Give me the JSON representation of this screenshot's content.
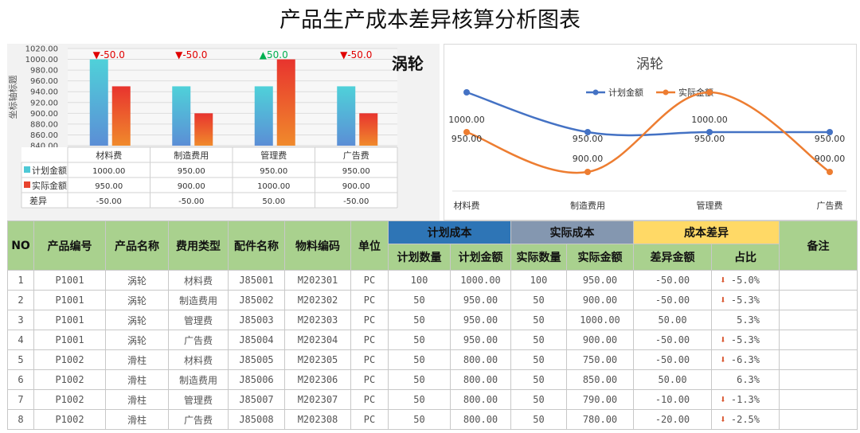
{
  "title": "产品生产成本差异核算分析图表",
  "chart_data": [
    {
      "type": "bar",
      "title": "涡轮",
      "ylabel": "坐标轴标题",
      "ylim": [
        840,
        1020
      ],
      "yticks": [
        "1020.00",
        "1000.00",
        "980.00",
        "960.00",
        "940.00",
        "920.00",
        "900.00",
        "880.00",
        "860.00",
        "840.00"
      ],
      "categories": [
        "材料费",
        "制造费用",
        "管理费",
        "广告费"
      ],
      "series": [
        {
          "name": "计划金额",
          "values": [
            1000,
            950,
            950,
            950
          ],
          "color": "#4ec9d6"
        },
        {
          "name": "实际金额",
          "values": [
            950,
            900,
            1000,
            900
          ],
          "color": "#e8432e"
        }
      ],
      "diff_row_label": "差异",
      "diff": [
        -50,
        -50,
        50,
        -50
      ],
      "annotations": [
        "▼-50.0",
        "▼-50.0",
        "▲50.0",
        "▼-50.0"
      ],
      "table_rows": [
        {
          "label": "计划金额",
          "cells": [
            "1000.00",
            "950.00",
            "950.00",
            "950.00"
          ]
        },
        {
          "label": "实际金额",
          "cells": [
            "950.00",
            "900.00",
            "1000.00",
            "900.00"
          ]
        },
        {
          "label": "差异",
          "cells": [
            "-50.00",
            "-50.00",
            "50.00",
            "-50.00"
          ]
        }
      ]
    },
    {
      "type": "line",
      "title": "涡轮",
      "legend_position": "top",
      "categories": [
        "材料费",
        "制造费用",
        "管理费",
        "广告费"
      ],
      "series": [
        {
          "name": "计划金额",
          "values": [
            1000,
            950,
            950,
            950
          ],
          "labels": [
            "1000.00",
            "950.00",
            "950.00",
            "950.00"
          ],
          "color": "#4472c4"
        },
        {
          "name": "实际金额",
          "values": [
            950,
            900,
            1000,
            900
          ],
          "labels": [
            "950.00",
            "900.00",
            "1000.00",
            "900.00"
          ],
          "color": "#ed7d31"
        }
      ]
    }
  ],
  "table": {
    "headers": {
      "no": "NO",
      "product_code": "产品编号",
      "product_name": "产品名称",
      "cost_type": "费用类型",
      "part_name": "配件名称",
      "material_code": "物料编码",
      "unit": "单位",
      "plan_group": "计划成本",
      "actual_group": "实际成本",
      "diff_group": "成本差异",
      "remark": "备注",
      "plan_qty": "计划数量",
      "plan_amt": "计划金额",
      "act_qty": "实际数量",
      "act_amt": "实际金额",
      "diff_amt": "差异金额",
      "ratio": "占比"
    },
    "rows": [
      {
        "no": "1",
        "code": "P1001",
        "name": "涡轮",
        "type": "材料费",
        "part": "J85001",
        "mat": "M202301",
        "unit": "PC",
        "plan_qty": "100",
        "plan_amt": "1000.00",
        "act_qty": "100",
        "act_amt": "950.00",
        "diff": "-50.00",
        "ratio": "-5.0%",
        "down": true,
        "remark": ""
      },
      {
        "no": "2",
        "code": "P1001",
        "name": "涡轮",
        "type": "制造费用",
        "part": "J85002",
        "mat": "M202302",
        "unit": "PC",
        "plan_qty": "50",
        "plan_amt": "950.00",
        "act_qty": "50",
        "act_amt": "900.00",
        "diff": "-50.00",
        "ratio": "-5.3%",
        "down": true,
        "remark": ""
      },
      {
        "no": "3",
        "code": "P1001",
        "name": "涡轮",
        "type": "管理费",
        "part": "J85003",
        "mat": "M202303",
        "unit": "PC",
        "plan_qty": "50",
        "plan_amt": "950.00",
        "act_qty": "50",
        "act_amt": "1000.00",
        "diff": "50.00",
        "ratio": "5.3%",
        "down": false,
        "remark": ""
      },
      {
        "no": "4",
        "code": "P1001",
        "name": "涡轮",
        "type": "广告费",
        "part": "J85004",
        "mat": "M202304",
        "unit": "PC",
        "plan_qty": "50",
        "plan_amt": "950.00",
        "act_qty": "50",
        "act_amt": "900.00",
        "diff": "-50.00",
        "ratio": "-5.3%",
        "down": true,
        "remark": ""
      },
      {
        "no": "5",
        "code": "P1002",
        "name": "滑柱",
        "type": "材料费",
        "part": "J85005",
        "mat": "M202305",
        "unit": "PC",
        "plan_qty": "50",
        "plan_amt": "800.00",
        "act_qty": "50",
        "act_amt": "750.00",
        "diff": "-50.00",
        "ratio": "-6.3%",
        "down": true,
        "remark": ""
      },
      {
        "no": "6",
        "code": "P1002",
        "name": "滑柱",
        "type": "制造费用",
        "part": "J85006",
        "mat": "M202306",
        "unit": "PC",
        "plan_qty": "50",
        "plan_amt": "800.00",
        "act_qty": "50",
        "act_amt": "850.00",
        "diff": "50.00",
        "ratio": "6.3%",
        "down": false,
        "remark": ""
      },
      {
        "no": "7",
        "code": "P1002",
        "name": "滑柱",
        "type": "管理费",
        "part": "J85007",
        "mat": "M202307",
        "unit": "PC",
        "plan_qty": "50",
        "plan_amt": "800.00",
        "act_qty": "50",
        "act_amt": "790.00",
        "diff": "-10.00",
        "ratio": "-1.3%",
        "down": true,
        "remark": ""
      },
      {
        "no": "8",
        "code": "P1002",
        "name": "滑柱",
        "type": "广告费",
        "part": "J85008",
        "mat": "M202308",
        "unit": "PC",
        "plan_qty": "50",
        "plan_amt": "800.00",
        "act_qty": "50",
        "act_amt": "780.00",
        "diff": "-20.00",
        "ratio": "-2.5%",
        "down": true,
        "remark": ""
      }
    ]
  }
}
